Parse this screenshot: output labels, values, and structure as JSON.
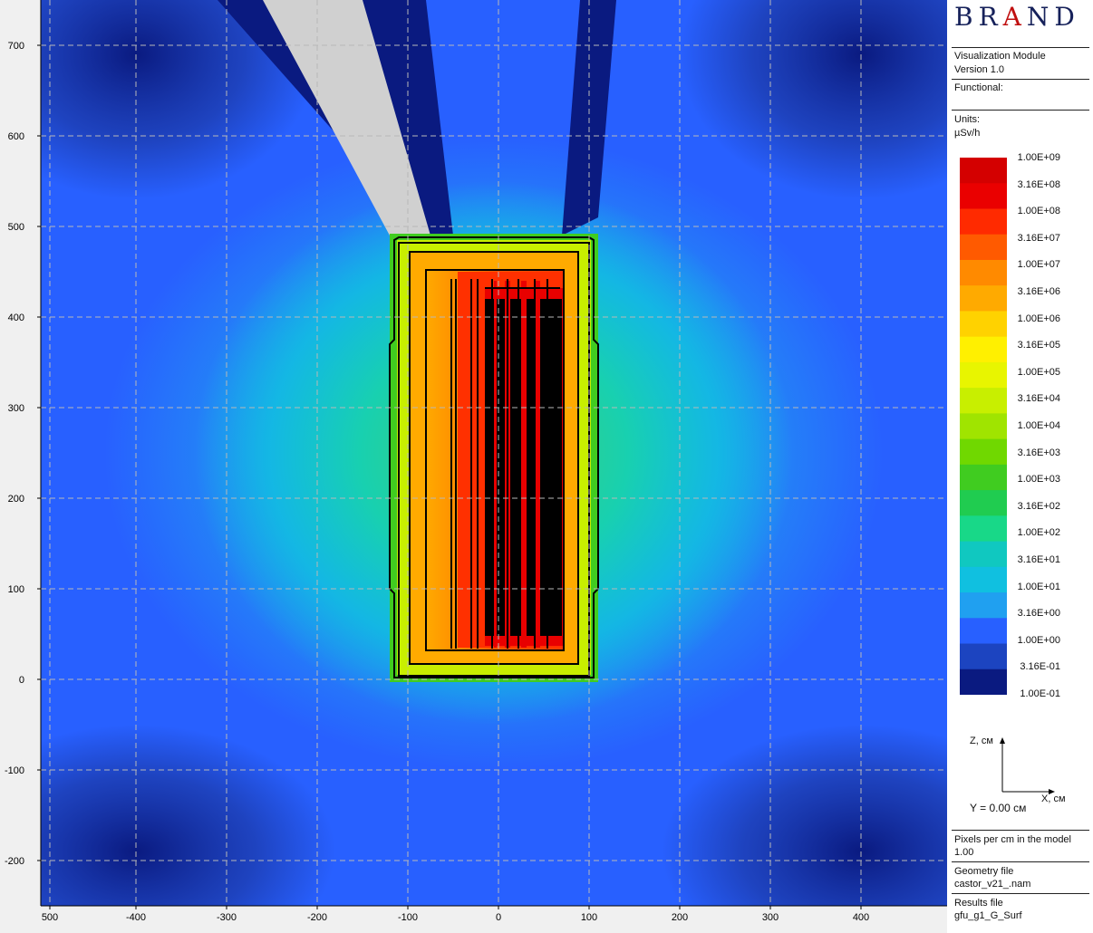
{
  "panel": {
    "brand": "BRAND",
    "module_name": "Visualization Module",
    "version": "Version 1.0",
    "functional_label": "Functional:",
    "units_label": "Units:",
    "units_value": "µSv/h",
    "axes_z": "Z, см",
    "axes_x": "X, см",
    "y_slice": "Y = 0.00 см",
    "pixels_label": "Pixels per cm in the model",
    "pixels_value": "1.00",
    "geometry_label": "Geometry file",
    "geometry_value": "castor_v21_.nam",
    "results_label": "Results file",
    "results_value": "gfu_g1_G_Surf"
  },
  "legend": {
    "levels": [
      "1.00E+09",
      "3.16E+08",
      "1.00E+08",
      "3.16E+07",
      "1.00E+07",
      "3.16E+06",
      "1.00E+06",
      "3.16E+05",
      "1.00E+05",
      "3.16E+04",
      "1.00E+04",
      "3.16E+03",
      "1.00E+03",
      "3.16E+02",
      "1.00E+02",
      "3.16E+01",
      "1.00E+01",
      "3.16E+00",
      "1.00E+00",
      "3.16E-01",
      "1.00E-01"
    ],
    "colors": [
      "#d40000",
      "#ea0000",
      "#ff2a00",
      "#ff5a00",
      "#ff8a00",
      "#ffaa00",
      "#ffd200",
      "#fff000",
      "#e8f500",
      "#c8ef00",
      "#a0e400",
      "#70d800",
      "#40cc20",
      "#20cc50",
      "#18d888",
      "#10c8c0",
      "#10c0e0",
      "#20a0f0",
      "#2860ff",
      "#1c44c0",
      "#0a1a80"
    ]
  },
  "chart_data": {
    "type": "heatmap",
    "xlim": [
      -505,
      495
    ],
    "ylim": [
      -250,
      750
    ],
    "x_ticks": [
      500,
      -400,
      -300,
      -200,
      -100,
      0,
      100,
      200,
      300,
      400
    ],
    "x_tick_labels": [
      "500",
      "-400",
      "-300",
      "-200",
      "-100",
      "0",
      "100",
      "200",
      "300",
      "400"
    ],
    "y_ticks": [
      700,
      600,
      500,
      400,
      300,
      200,
      100,
      0,
      -100,
      -200
    ],
    "y_tick_labels": [
      "700",
      "600",
      "500",
      "400",
      "300",
      "200",
      "100",
      "0",
      "-100",
      "-200"
    ],
    "grid": true,
    "colorbar_position": "right",
    "colormap": "jet",
    "dose_rate_range": [
      0.1,
      1000000000.0
    ]
  }
}
